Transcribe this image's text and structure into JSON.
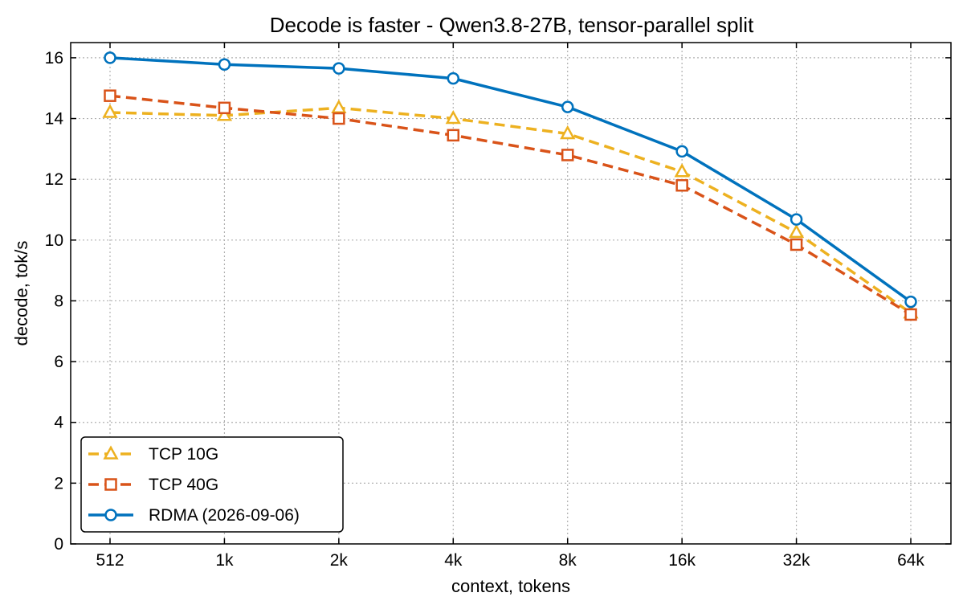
{
  "chart_data": {
    "type": "line",
    "title": "Decode is faster - Qwen3.8-27B, tensor-parallel split",
    "xlabel": "context, tokens",
    "ylabel": "decode, tok/s",
    "categories": [
      "512",
      "1k",
      "2k",
      "4k",
      "8k",
      "16k",
      "32k",
      "64k"
    ],
    "ylim": [
      0,
      16.5
    ],
    "yticks": [
      "0",
      "2",
      "4",
      "6",
      "8",
      "10",
      "12",
      "14",
      "16"
    ],
    "grid": true,
    "legend_position": "bottom-left",
    "series": [
      {
        "name": "TCP 10G",
        "color": "#EDB120",
        "marker": "triangle",
        "line_style": "dashed",
        "values": [
          14.2,
          14.1,
          14.35,
          14.0,
          13.5,
          12.25,
          10.25,
          7.6
        ]
      },
      {
        "name": "TCP 40G",
        "color": "#D95319",
        "marker": "square",
        "line_style": "dashed",
        "values": [
          14.75,
          14.35,
          14.0,
          13.45,
          12.8,
          11.8,
          9.85,
          7.55
        ]
      },
      {
        "name": "RDMA (2026-09-06)",
        "color": "#0072BD",
        "marker": "circle",
        "line_style": "solid",
        "values": [
          16.0,
          15.78,
          15.65,
          15.32,
          14.38,
          12.92,
          10.68,
          7.97
        ]
      }
    ]
  }
}
